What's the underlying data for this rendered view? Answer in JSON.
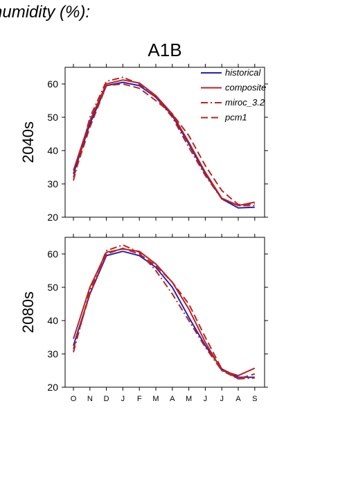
{
  "page_title": "humidity (%):",
  "scenario": "A1B",
  "colors": {
    "historical": "#2222bb",
    "model": "#bb2222"
  },
  "chart_data": [
    {
      "type": "line",
      "title": "A1B",
      "ylabel": "2040s",
      "xlabel": "",
      "categories": [
        "O",
        "N",
        "D",
        "J",
        "F",
        "M",
        "A",
        "M",
        "J",
        "J",
        "A",
        "S"
      ],
      "ylim": [
        20,
        65
      ],
      "yticks": [
        20,
        30,
        40,
        50,
        60
      ],
      "grid": false,
      "legend": "top-right",
      "series": [
        {
          "name": "historical",
          "style": "solid",
          "color": "#2222bb",
          "values": [
            33,
            48,
            59.5,
            60.5,
            59.5,
            56,
            50.5,
            42,
            33,
            25.5,
            22.8,
            23
          ]
        },
        {
          "name": "composite",
          "style": "solid",
          "color": "#bb2222",
          "values": [
            34,
            49,
            60,
            61.2,
            60.3,
            56.5,
            51,
            42.5,
            33.5,
            25.7,
            23.5,
            24.5
          ]
        },
        {
          "name": "miroc_3.2",
          "style": "dashdot",
          "color": "#bb2222",
          "values": [
            31,
            50,
            60.8,
            62,
            60,
            56,
            50,
            41,
            32.5,
            25.5,
            23.5,
            23.5
          ]
        },
        {
          "name": "pcm1",
          "style": "dash",
          "color": "#bb2222",
          "values": [
            32,
            47,
            59.5,
            60,
            58.7,
            55,
            51,
            44.5,
            35.5,
            28,
            23.8,
            24
          ]
        }
      ]
    },
    {
      "type": "line",
      "title": "",
      "ylabel": "2080s",
      "xlabel": "",
      "categories": [
        "O",
        "N",
        "D",
        "J",
        "F",
        "M",
        "A",
        "M",
        "J",
        "J",
        "A",
        "S"
      ],
      "ylim": [
        20,
        65
      ],
      "yticks": [
        20,
        30,
        40,
        50,
        60
      ],
      "grid": false,
      "series": [
        {
          "name": "historical",
          "style": "solid",
          "color": "#2222bb",
          "values": [
            32.5,
            48,
            59.5,
            60.8,
            59.5,
            56,
            50,
            41,
            32.5,
            25.5,
            23,
            23
          ]
        },
        {
          "name": "composite",
          "style": "solid",
          "color": "#bb2222",
          "values": [
            34.5,
            50,
            60.5,
            61.5,
            60.8,
            57,
            51.5,
            43.5,
            33.5,
            25,
            23.5,
            25.7
          ]
        },
        {
          "name": "miroc_3.2",
          "style": "dashdot",
          "color": "#bb2222",
          "values": [
            30.5,
            49,
            61,
            62.7,
            60.5,
            55,
            48,
            40,
            32,
            25,
            22.5,
            22.8
          ]
        },
        {
          "name": "pcm1",
          "style": "dash",
          "color": "#bb2222",
          "values": [
            31.5,
            48,
            60,
            61.7,
            60,
            56.5,
            51.5,
            45,
            35,
            25.5,
            22.5,
            24
          ]
        }
      ]
    }
  ]
}
